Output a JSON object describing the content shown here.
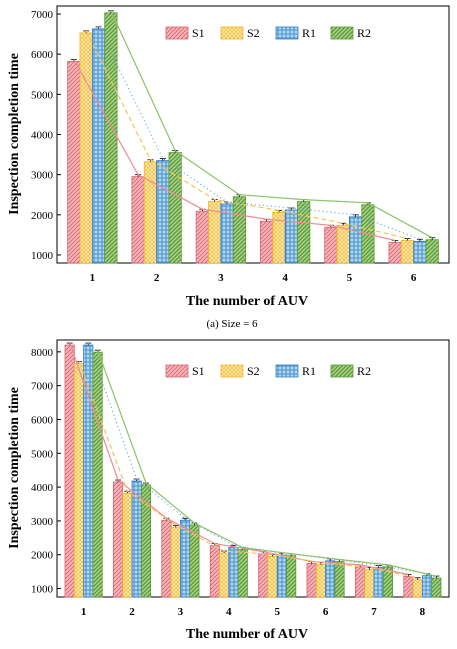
{
  "chart_data": [
    {
      "type": "bar",
      "caption": "(a) Size = 6",
      "xlabel": "The number of AUV",
      "ylabel": "Inspection completion time",
      "categories": [
        "1",
        "2",
        "3",
        "4",
        "5",
        "6"
      ],
      "ylim": [
        800,
        7200
      ],
      "yticks": [
        "1000",
        "2000",
        "3000",
        "4000",
        "5000",
        "6000",
        "7000"
      ],
      "legend_position": "top-right",
      "series": [
        {
          "name": "S1",
          "values": [
            5820,
            2950,
            2090,
            1840,
            1690,
            1310
          ],
          "color": "#f4b6bb",
          "stroke": "#d9636d",
          "pattern": "hatch"
        },
        {
          "name": "S2",
          "values": [
            6530,
            3320,
            2330,
            2060,
            1740,
            1360
          ],
          "color": "#fde8ad",
          "stroke": "#f3b525",
          "pattern": "cross"
        },
        {
          "name": "R1",
          "values": [
            6630,
            3350,
            2270,
            2120,
            1950,
            1340
          ],
          "color": "#aed6f1",
          "stroke": "#2f7fc4",
          "pattern": "grid"
        },
        {
          "name": "R2",
          "values": [
            7030,
            3550,
            2450,
            2330,
            2250,
            1380
          ],
          "color": "#a9d18e",
          "stroke": "#5a9a32",
          "pattern": "hatch-bold"
        }
      ]
    },
    {
      "type": "bar",
      "xlabel": "The number of AUV",
      "ylabel": "Inspection completion time",
      "categories": [
        "1",
        "2",
        "3",
        "4",
        "5",
        "6",
        "7",
        "8"
      ],
      "ylim": [
        750,
        8350
      ],
      "yticks": [
        "1000",
        "2000",
        "3000",
        "4000",
        "5000",
        "6000",
        "7000",
        "8000"
      ],
      "legend_position": "top-right",
      "series": [
        {
          "name": "S1",
          "values": [
            8200,
            4150,
            3020,
            2270,
            2030,
            1740,
            1640,
            1360
          ],
          "color": "#f4b6bb",
          "stroke": "#d9636d",
          "pattern": "hatch"
        },
        {
          "name": "S2",
          "values": [
            7650,
            3820,
            2810,
            2050,
            1950,
            1710,
            1560,
            1260
          ],
          "color": "#fde8ad",
          "stroke": "#f3b525",
          "pattern": "cross"
        },
        {
          "name": "R1",
          "values": [
            8200,
            4180,
            3020,
            2220,
            1990,
            1820,
            1620,
            1380
          ],
          "color": "#aed6f1",
          "stroke": "#2f7fc4",
          "pattern": "grid"
        },
        {
          "name": "R2",
          "values": [
            7990,
            4060,
            2880,
            2150,
            1970,
            1800,
            1640,
            1310
          ],
          "color": "#a9d18e",
          "stroke": "#5a9a32",
          "pattern": "hatch-bold"
        }
      ]
    }
  ]
}
